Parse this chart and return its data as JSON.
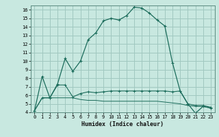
{
  "xlabel": "Humidex (Indice chaleur)",
  "background_color": "#c8e8e0",
  "grid_color": "#a0c8c0",
  "line_color": "#1a6b5a",
  "xlim": [
    -0.5,
    23.5
  ],
  "ylim": [
    4,
    16.5
  ],
  "yticks": [
    4,
    5,
    6,
    7,
    8,
    9,
    10,
    11,
    12,
    13,
    14,
    15,
    16
  ],
  "xticks": [
    0,
    1,
    2,
    3,
    4,
    5,
    6,
    7,
    8,
    9,
    10,
    11,
    12,
    13,
    14,
    15,
    16,
    17,
    18,
    19,
    20,
    21,
    22,
    23
  ],
  "curve1_x": [
    0,
    1,
    2,
    3,
    4,
    5,
    6,
    7,
    8,
    9,
    10,
    11,
    12,
    13,
    14,
    15,
    16,
    17,
    18,
    19,
    20,
    21,
    22,
    23
  ],
  "curve1_y": [
    4.2,
    8.2,
    5.7,
    7.3,
    10.3,
    8.8,
    10.0,
    12.5,
    13.3,
    14.7,
    15.0,
    14.8,
    15.3,
    16.3,
    16.2,
    15.6,
    14.8,
    14.1,
    9.8,
    6.5,
    5.0,
    3.9,
    4.7,
    4.5
  ],
  "curve2_x": [
    0,
    1,
    2,
    3,
    4,
    5,
    6,
    7,
    8,
    9,
    10,
    11,
    12,
    13,
    14,
    15,
    16,
    17,
    18,
    19,
    20,
    21,
    22,
    23
  ],
  "curve2_y": [
    4.2,
    5.7,
    5.7,
    7.2,
    7.2,
    5.8,
    6.2,
    6.4,
    6.3,
    6.4,
    6.5,
    6.5,
    6.5,
    6.5,
    6.5,
    6.5,
    6.5,
    6.5,
    6.4,
    6.5,
    5.0,
    4.8,
    4.8,
    4.6
  ],
  "curve3_x": [
    0,
    1,
    2,
    3,
    4,
    5,
    6,
    7,
    8,
    9,
    10,
    11,
    12,
    13,
    14,
    15,
    16,
    17,
    18,
    19,
    20,
    21,
    22,
    23
  ],
  "curve3_y": [
    4.2,
    5.7,
    5.7,
    5.7,
    5.7,
    5.7,
    5.5,
    5.4,
    5.4,
    5.3,
    5.3,
    5.3,
    5.3,
    5.3,
    5.3,
    5.3,
    5.3,
    5.2,
    5.1,
    5.0,
    4.8,
    4.7,
    4.7,
    4.5
  ]
}
